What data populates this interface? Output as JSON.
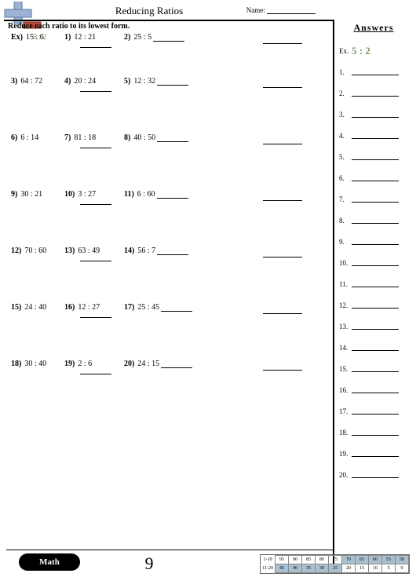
{
  "title": "Reducing Ratios",
  "name_label": "Name:",
  "instruction": "Reduce each ratio to its lowest form.",
  "answers_heading": "Answers",
  "ex_label": "Ex.",
  "ex_answer": "5 : 2",
  "page_number": "9",
  "math_badge": "Math",
  "rows": [
    {
      "p": [
        {
          "n": "Ex)",
          "t": "15 : 6",
          "g": "5 : 2"
        },
        {
          "n": "1)",
          "t": "12 : 21"
        },
        {
          "n": "2)",
          "t": "25 : 5"
        }
      ]
    },
    {
      "p": [
        {
          "n": "3)",
          "t": "64 : 72"
        },
        {
          "n": "4)",
          "t": "20 : 24"
        },
        {
          "n": "5)",
          "t": "12 : 32"
        }
      ]
    },
    {
      "p": [
        {
          "n": "6)",
          "t": "6 : 14"
        },
        {
          "n": "7)",
          "t": "81 : 18"
        },
        {
          "n": "8)",
          "t": "40 : 50"
        }
      ]
    },
    {
      "p": [
        {
          "n": "9)",
          "t": "30 : 21"
        },
        {
          "n": "10)",
          "t": "3 : 27"
        },
        {
          "n": "11)",
          "t": "6 : 60"
        }
      ]
    },
    {
      "p": [
        {
          "n": "12)",
          "t": "70 : 60"
        },
        {
          "n": "13)",
          "t": "63 : 49"
        },
        {
          "n": "14)",
          "t": "56 : 7"
        }
      ]
    },
    {
      "p": [
        {
          "n": "15)",
          "t": "24 : 40"
        },
        {
          "n": "16)",
          "t": "12 : 27"
        },
        {
          "n": "17)",
          "t": "25 : 45"
        }
      ]
    },
    {
      "p": [
        {
          "n": "18)",
          "t": "30 : 40"
        },
        {
          "n": "19)",
          "t": "2 : 6"
        },
        {
          "n": "20)",
          "t": "24 : 15"
        }
      ]
    }
  ],
  "score": {
    "row1_label": "1-10",
    "row2_label": "11-20",
    "row1": [
      "95",
      "90",
      "85",
      "80",
      "75",
      "70",
      "65",
      "60",
      "55",
      "50"
    ],
    "row2": [
      "45",
      "40",
      "35",
      "30",
      "25",
      "20",
      "15",
      "10",
      "5",
      "0"
    ],
    "hl_start": 5
  }
}
